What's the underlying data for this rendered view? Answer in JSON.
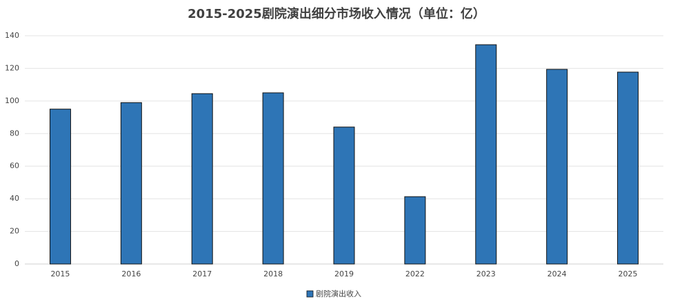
{
  "chart_data": {
    "type": "bar",
    "title": "2015-2025剧院演出细分市场收入情况（单位：亿）",
    "categories": [
      "2015",
      "2016",
      "2017",
      "2018",
      "2019",
      "2022",
      "2023",
      "2024",
      "2025"
    ],
    "series": [
      {
        "name": "剧院演出收入",
        "color": "#2e75b6",
        "values": [
          95,
          99,
          104.5,
          105,
          84,
          41.3,
          134.5,
          119.4,
          117.7
        ]
      }
    ],
    "ylim": [
      0,
      140
    ],
    "yticks": [
      0,
      20,
      40,
      60,
      80,
      100,
      120,
      140
    ],
    "grid": true,
    "legend": "bottom"
  }
}
